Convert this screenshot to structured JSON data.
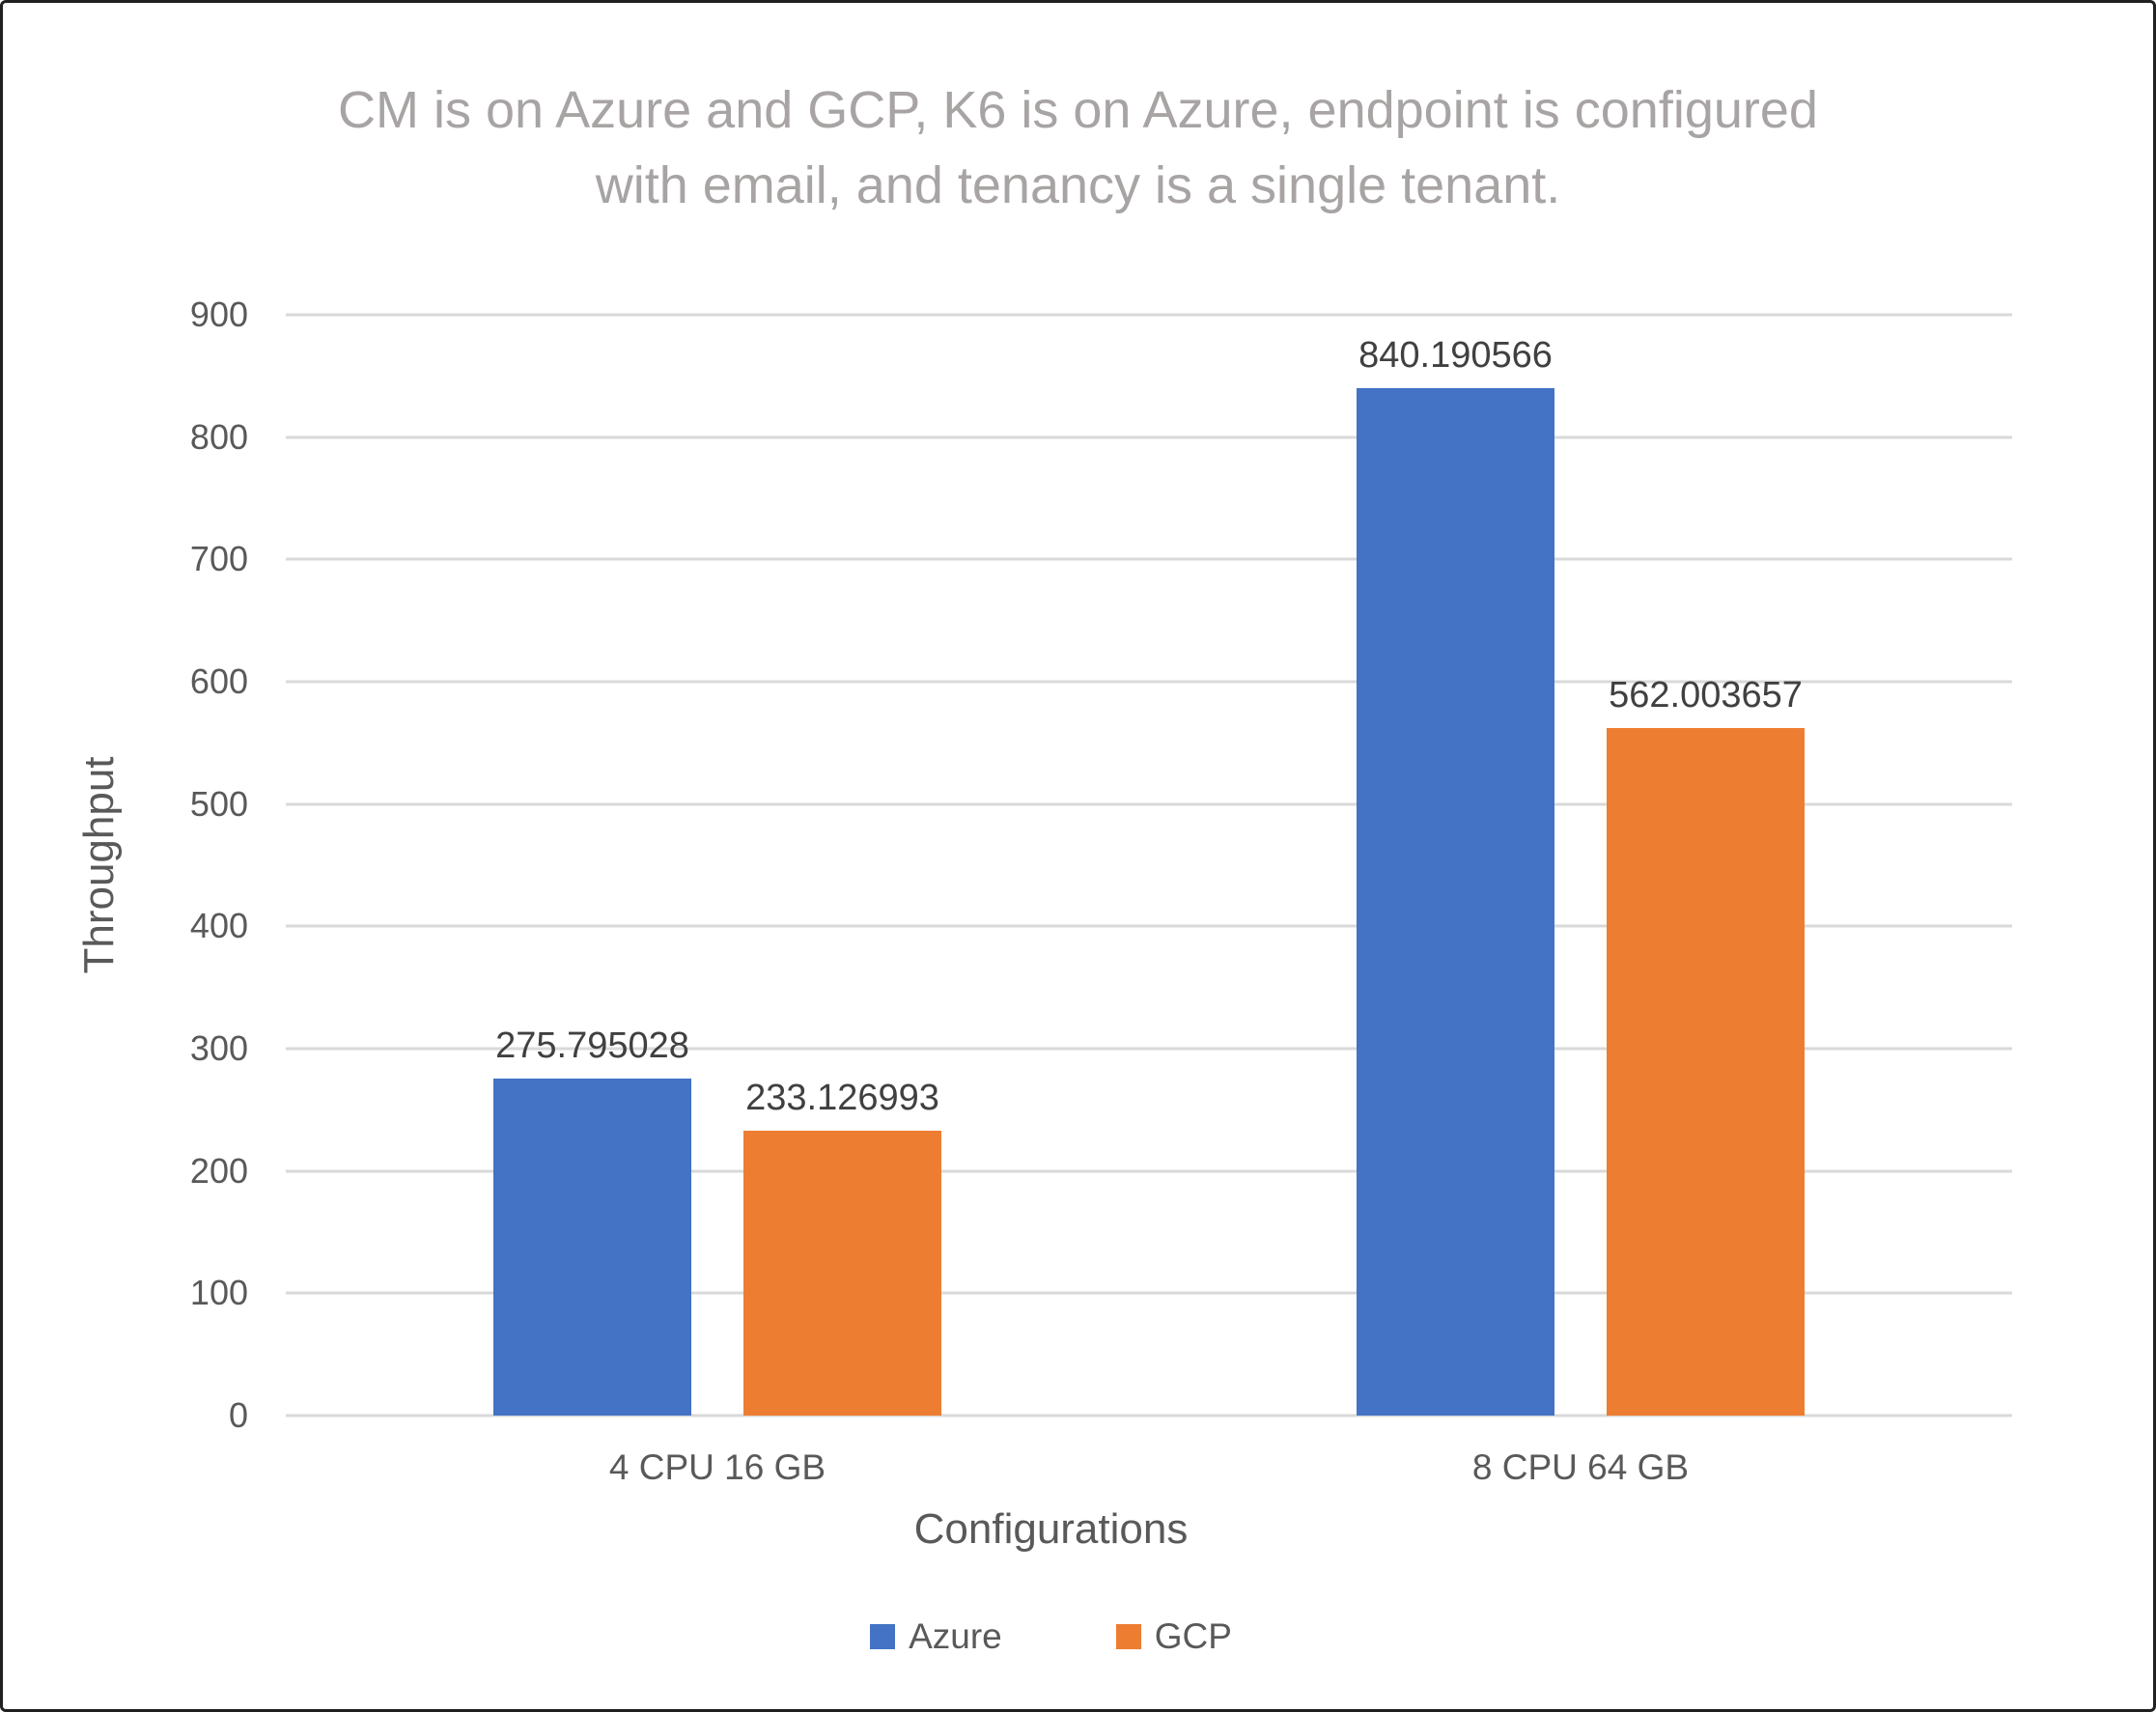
{
  "chart_data": {
    "type": "bar",
    "title": "CM is on Azure and GCP, K6 is on Azure, endpoint is configured with email, and tenancy is a single tenant.",
    "title_lines": [
      "CM is on Azure and GCP, K6 is on Azure, endpoint is configured",
      "with email, and tenancy is a single tenant."
    ],
    "categories": [
      "4 CPU 16 GB",
      "8 CPU 64 GB"
    ],
    "series": [
      {
        "name": "Azure",
        "color": "#4472C4",
        "values": [
          275.795028,
          840.190566
        ],
        "value_labels": [
          "275.795028",
          "840.190566"
        ]
      },
      {
        "name": "GCP",
        "color": "#ED7D31",
        "values": [
          233.126993,
          562.003657
        ],
        "value_labels": [
          "233.126993",
          "562.003657"
        ]
      }
    ],
    "xlabel": "Configurations",
    "ylabel": "Throughput",
    "ylim": [
      0,
      900
    ],
    "yticks": [
      0,
      100,
      200,
      300,
      400,
      500,
      600,
      700,
      800,
      900
    ],
    "grid": true,
    "data_labels": true,
    "legend_position": "bottom",
    "colors": {
      "azure_bar": "#4472C4",
      "gcp_bar": "#ED7D31",
      "gridline": "#D9D9D9",
      "title_text": "#A8A4A4",
      "axis_text": "#595959",
      "data_label_text": "#404040",
      "frame_border": "#202020",
      "background": "#FFFFFF"
    }
  }
}
